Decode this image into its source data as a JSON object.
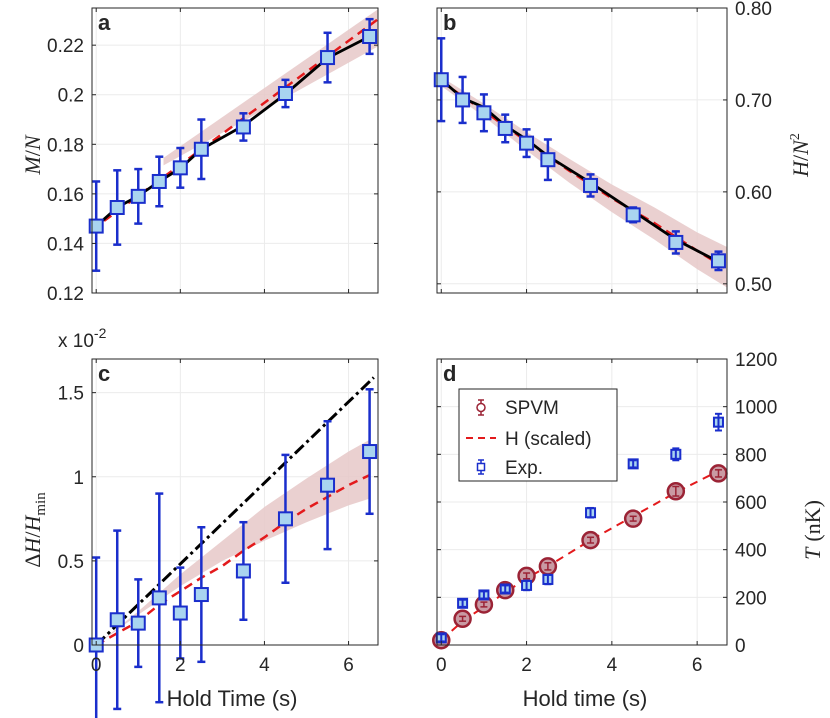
{
  "chart_data": [
    {
      "id": "a",
      "type": "line",
      "panel_label": "a",
      "xlabel": "",
      "ylabel": "M/N",
      "ylabel_parts": {
        "m": "M",
        "slash": "/",
        "n": "N"
      },
      "xlim": [
        -0.1,
        6.7
      ],
      "ylim": [
        0.12,
        0.235
      ],
      "xticks": [
        0,
        2,
        4,
        6
      ],
      "show_xtick_labels": false,
      "yticks": [
        0.12,
        0.14,
        0.16,
        0.18,
        0.2,
        0.22
      ],
      "ytick_labels": [
        "0.12",
        "0.14",
        "0.16",
        "0.18",
        "0.2",
        "0.22"
      ],
      "yaxis_side": "left",
      "grid": true,
      "band": {
        "start_x": 1.6,
        "x": [
          1.6,
          6.7
        ],
        "lower": [
          0.1715,
          0.2195
        ],
        "upper": [
          0.1745,
          0.2345
        ],
        "color": "#e6c8c8"
      },
      "dashed_fit": {
        "x": [
          -0.1,
          6.7
        ],
        "y": [
          0.1455,
          0.2305
        ],
        "color": "#e31a1c"
      },
      "solid_fit": {
        "x": [
          0,
          0.5,
          1,
          1.5,
          2,
          2.5,
          3.5,
          4.5,
          5.5,
          6.5
        ],
        "y": [
          0.147,
          0.1545,
          0.1592,
          0.165,
          0.1703,
          0.178,
          0.1875,
          0.2003,
          0.2148,
          0.2235
        ],
        "color": "#000000"
      },
      "markers": {
        "x": [
          0,
          0.5,
          1,
          1.5,
          2,
          2.5,
          3.5,
          4.5,
          5.5,
          6.5
        ],
        "y": [
          0.147,
          0.1545,
          0.159,
          0.165,
          0.1705,
          0.178,
          0.187,
          0.2005,
          0.215,
          0.2235
        ],
        "err": [
          0.018,
          0.015,
          0.011,
          0.01,
          0.008,
          0.012,
          0.0055,
          0.0055,
          0.01,
          0.007
        ],
        "shape": "square",
        "fill": "#a9d4f0",
        "stroke": "#1a2ecc"
      }
    },
    {
      "id": "b",
      "type": "line",
      "panel_label": "b",
      "xlabel": "",
      "ylabel": "H/N^2",
      "ylabel_parts": {
        "h": "H",
        "slash": "/",
        "n": "N",
        "exp": "2"
      },
      "xlim": [
        -0.1,
        6.7
      ],
      "ylim": [
        0.49,
        0.8
      ],
      "xticks": [
        0,
        2,
        4,
        6
      ],
      "show_xtick_labels": false,
      "yticks": [
        0.5,
        0.6,
        0.7,
        0.8
      ],
      "ytick_labels": [
        "0.50",
        "0.60",
        "0.70",
        "0.80"
      ],
      "yaxis_side": "right",
      "grid": true,
      "band": {
        "start_x": 0,
        "x": [
          0,
          1,
          2,
          3,
          4,
          5,
          6,
          6.7
        ],
        "lower": [
          0.715,
          0.682,
          0.645,
          0.61,
          0.578,
          0.548,
          0.516,
          0.496
        ],
        "upper": [
          0.725,
          0.696,
          0.665,
          0.636,
          0.608,
          0.583,
          0.556,
          0.54
        ],
        "color": "#e6c8c8"
      },
      "dashed_fit": {
        "x": [
          0,
          1,
          2,
          3,
          4,
          5,
          6,
          6.7
        ],
        "y": [
          0.72,
          0.688,
          0.655,
          0.623,
          0.593,
          0.566,
          0.536,
          0.516
        ],
        "color": "#e31a1c"
      },
      "solid_fit": {
        "x": [
          0,
          0.5,
          1,
          1.5,
          2,
          2.5,
          3.5,
          4.5,
          5.5,
          6.5
        ],
        "y": [
          0.722,
          0.702,
          0.692,
          0.672,
          0.657,
          0.639,
          0.61,
          0.579,
          0.548,
          0.524
        ],
        "color": "#000000"
      },
      "markers": {
        "x": [
          0,
          0.5,
          1,
          1.5,
          2,
          2.5,
          3.5,
          4.5,
          5.5,
          6.5
        ],
        "y": [
          0.722,
          0.7,
          0.686,
          0.669,
          0.653,
          0.635,
          0.607,
          0.575,
          0.545,
          0.525
        ],
        "err": [
          0.045,
          0.025,
          0.02,
          0.015,
          0.015,
          0.022,
          0.012,
          0.008,
          0.012,
          0.01
        ],
        "shape": "square",
        "fill": "#a9d4f0",
        "stroke": "#1a2ecc"
      }
    },
    {
      "id": "c",
      "type": "line",
      "panel_label": "c",
      "xlabel": "Hold Time (s)",
      "ylabel": "ΔH/Hmin",
      "ylabel_parts": {
        "delta": "Δ",
        "h": "H",
        "slash": "/",
        "h2": "H",
        "sub": "min"
      },
      "axis_multiplier": "x 10",
      "axis_multiplier_exp": "-2",
      "xlim": [
        -0.1,
        6.7
      ],
      "ylim": [
        0,
        1.7
      ],
      "xticks": [
        0,
        2,
        4,
        6
      ],
      "xtick_labels": [
        "0",
        "2",
        "4",
        "6"
      ],
      "show_xtick_labels": true,
      "yticks": [
        0,
        0.5,
        1,
        1.5
      ],
      "ytick_labels": [
        "0",
        "0.5",
        "1",
        "1.5"
      ],
      "yaxis_side": "left",
      "grid": true,
      "band": {
        "start_x": 0,
        "x": [
          0,
          1,
          2,
          3,
          4,
          5,
          6,
          6.5
        ],
        "lower": [
          0,
          0.18,
          0.35,
          0.5,
          0.62,
          0.73,
          0.83,
          0.87
        ],
        "upper": [
          0,
          0.2,
          0.42,
          0.62,
          0.82,
          0.99,
          1.15,
          1.22
        ],
        "color": "#e6c8c8"
      },
      "dashed_fit": {
        "x": [
          0,
          0.5,
          1,
          1.5,
          2,
          2.5,
          3,
          3.5,
          4,
          4.5,
          5,
          5.5,
          6,
          6.5
        ],
        "y": [
          0,
          0.07,
          0.14,
          0.24,
          0.32,
          0.4,
          0.47,
          0.56,
          0.64,
          0.73,
          0.81,
          0.88,
          0.95,
          1.01
        ],
        "color": "#e31a1c"
      },
      "dashdot_line": {
        "x": [
          0,
          6.6
        ],
        "y": [
          0,
          1.59
        ],
        "color": "#000000"
      },
      "markers": {
        "x": [
          0,
          0.5,
          1,
          1.5,
          2,
          2.5,
          3.5,
          4.5,
          5.5,
          6.5
        ],
        "y": [
          0,
          0.15,
          0.13,
          0.28,
          0.19,
          0.3,
          0.44,
          0.75,
          0.95,
          1.15
        ],
        "err": [
          0.52,
          0.53,
          0.26,
          0.62,
          0.27,
          0.4,
          0.29,
          0.38,
          0.38,
          0.37
        ],
        "shape": "square",
        "fill": "#a9d4f0",
        "stroke": "#1a2ecc"
      }
    },
    {
      "id": "d",
      "type": "scatter",
      "panel_label": "d",
      "xlabel": "Hold time (s)",
      "ylabel": "T (nK)",
      "ylabel_parts": {
        "t": "T",
        "unit": "(nK)"
      },
      "xlim": [
        -0.1,
        6.7
      ],
      "ylim": [
        0,
        1200
      ],
      "xticks": [
        0,
        2,
        4,
        6
      ],
      "xtick_labels": [
        "0",
        "2",
        "4",
        "6"
      ],
      "show_xtick_labels": true,
      "yticks": [
        0,
        200,
        400,
        600,
        800,
        1000,
        1200
      ],
      "ytick_labels": [
        "0",
        "200",
        "400",
        "600",
        "800",
        "1000",
        "1200"
      ],
      "yaxis_side": "right",
      "grid": true,
      "series": [
        {
          "name": "SPVM",
          "kind": "circle",
          "color": "#9b2335",
          "fill": "#c99aa3",
          "x": [
            0,
            0.5,
            1,
            1.5,
            2,
            2.5,
            3.5,
            4.5,
            5.5,
            6.5
          ],
          "y": [
            20,
            110,
            170,
            230,
            290,
            330,
            440,
            530,
            645,
            720
          ],
          "err": [
            5,
            10,
            10,
            12,
            12,
            15,
            12,
            10,
            20,
            15
          ]
        },
        {
          "name": "H (scaled)",
          "kind": "dashed",
          "color": "#e31a1c",
          "x": [
            0,
            0.5,
            1,
            1.5,
            2,
            2.5,
            3.5,
            4.5,
            5.5,
            6.5
          ],
          "y": [
            20,
            100,
            160,
            220,
            280,
            330,
            440,
            540,
            640,
            730
          ]
        },
        {
          "name": "Exp.",
          "kind": "square",
          "color": "#1a2ecc",
          "fill": "#a9d4f0",
          "x": [
            0,
            0.5,
            1,
            1.5,
            2,
            2.5,
            3.5,
            4.5,
            5.5,
            6.5
          ],
          "y": [
            30,
            175,
            210,
            235,
            250,
            275,
            555,
            760,
            800,
            935
          ],
          "err": [
            15,
            15,
            15,
            15,
            20,
            20,
            20,
            15,
            25,
            35
          ]
        }
      ]
    }
  ]
}
